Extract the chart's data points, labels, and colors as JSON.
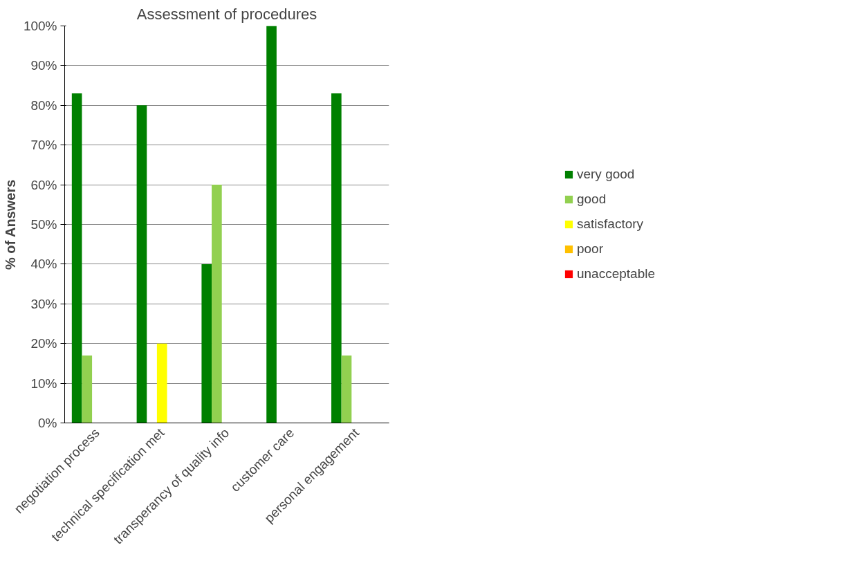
{
  "chart_data": {
    "type": "bar",
    "title": "Assessment of procedures",
    "ylabel": "% of Answers",
    "categories": [
      "negotiation process",
      "technical specification met",
      "transperancy of quality info",
      "customer care",
      "personal engagement"
    ],
    "series": [
      {
        "name": "very good",
        "color": "#008000",
        "values": [
          83,
          80,
          40,
          100,
          83
        ]
      },
      {
        "name": "good",
        "color": "#92d050",
        "values": [
          17,
          0,
          60,
          0,
          17
        ]
      },
      {
        "name": "satisfactory",
        "color": "#ffff00",
        "values": [
          0,
          20,
          0,
          0,
          0
        ]
      },
      {
        "name": "poor",
        "color": "#ffc000",
        "values": [
          0,
          0,
          0,
          0,
          0
        ]
      },
      {
        "name": "unacceptable",
        "color": "#ff0000",
        "values": [
          0,
          0,
          0,
          0,
          0
        ]
      }
    ],
    "ylim": [
      0,
      100
    ],
    "yticks": [
      {
        "value": 0,
        "label": "0%"
      },
      {
        "value": 10,
        "label": "10%"
      },
      {
        "value": 20,
        "label": "20%"
      },
      {
        "value": 30,
        "label": "30%"
      },
      {
        "value": 40,
        "label": "40%"
      },
      {
        "value": 50,
        "label": "50%"
      },
      {
        "value": 60,
        "label": "60%"
      },
      {
        "value": 70,
        "label": "70%"
      },
      {
        "value": 80,
        "label": "80%"
      },
      {
        "value": 90,
        "label": "90%"
      },
      {
        "value": 100,
        "label": "100%"
      }
    ],
    "grid": "y",
    "legend": "right"
  }
}
